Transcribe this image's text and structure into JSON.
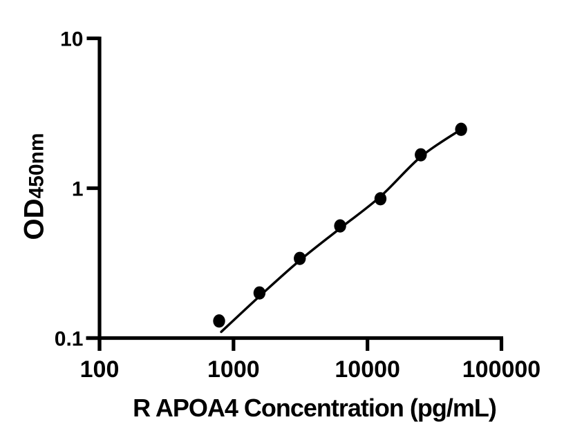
{
  "figure": {
    "background": "#ffffff",
    "ink": "#000000"
  },
  "chart_data": {
    "type": "scatter",
    "subtype": "standard-curve-with-fit",
    "title": "",
    "xlabel": "R APOA4 Concentration (pg/mL)",
    "ylabel": "OD450nm",
    "ylabel_main": "OD",
    "ylabel_sub": "450nm",
    "x_scale": "log10",
    "y_scale": "log10",
    "xlim": [
      100,
      100000
    ],
    "ylim": [
      0.1,
      10
    ],
    "x_ticks": [
      100,
      1000,
      10000,
      100000
    ],
    "x_tick_labels": [
      "100",
      "1000",
      "10000",
      "100000"
    ],
    "y_ticks": [
      10,
      1,
      0.1
    ],
    "y_tick_labels": [
      "10",
      "1",
      "0.1"
    ],
    "grid": false,
    "legend": false,
    "series": [
      {
        "id": "standards",
        "type": "scatter",
        "marker": "filled-circle",
        "color": "#000000",
        "x": [
          781,
          1563,
          3125,
          6250,
          12500,
          25000,
          50000
        ],
        "y": [
          0.13,
          0.2,
          0.34,
          0.56,
          0.85,
          1.67,
          2.47
        ]
      },
      {
        "id": "fit",
        "type": "line",
        "color": "#000000",
        "x": [
          810,
          1563,
          3125,
          6250,
          12500,
          25000,
          50000
        ],
        "y": [
          0.11,
          0.19,
          0.33,
          0.54,
          0.88,
          1.62,
          2.47
        ]
      }
    ]
  }
}
